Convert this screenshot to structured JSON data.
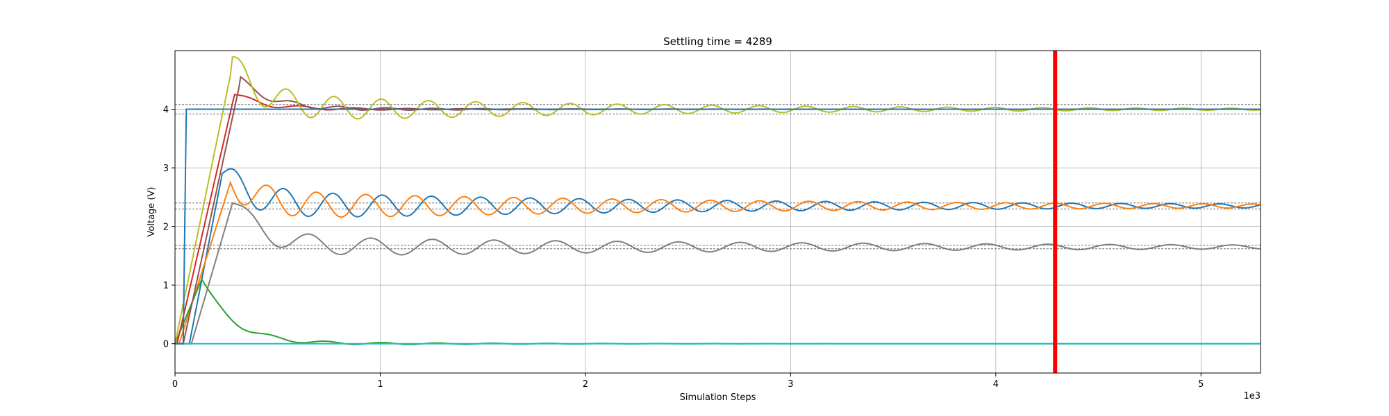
{
  "chart_data": {
    "type": "line",
    "title": "Settling time = 4289",
    "xlabel": "Simulation Steps",
    "ylabel": "Voltage (V)",
    "x_multiplier_label": "1e3",
    "xlim": [
      0,
      5290
    ],
    "ylim": [
      -0.5,
      5.0
    ],
    "grid": true,
    "x_ticks": [
      0,
      1000,
      2000,
      3000,
      4000,
      5000
    ],
    "x_tick_labels": [
      "0",
      "1",
      "2",
      "3",
      "4",
      "5"
    ],
    "y_ticks": [
      0,
      1,
      2,
      3,
      4
    ],
    "y_tick_labels": [
      "0",
      "1",
      "2",
      "3",
      "4"
    ],
    "settling_time": 4289,
    "settling_line_color": "#ff0000",
    "reference_bands": [
      {
        "low": 3.92,
        "high": 4.08
      },
      {
        "low": 2.3,
        "high": 2.4
      },
      {
        "low": 1.62,
        "high": 1.68
      }
    ],
    "series": [
      {
        "color": "#1f77b4",
        "start": 0,
        "delay": 70,
        "final": 2.35,
        "initial_value": 2.9,
        "amp": 0.25,
        "period": 240,
        "tau": 2500,
        "rise": 160,
        "phase": 0.0,
        "step_at": 40,
        "step_value": 4.0
      },
      {
        "color": "#ff7f0e",
        "start": 0,
        "delay": 20,
        "final": 2.35,
        "initial_value": 2.75,
        "amp": 0.25,
        "period": 240,
        "tau": 2500,
        "rise": 250,
        "phase": 3.14,
        "step_at": null,
        "step_value": null
      },
      {
        "color": "#2ca02c",
        "start": 0,
        "delay": 0,
        "final": 0.0,
        "initial_value": 1.1,
        "amp": 0.05,
        "period": 270,
        "tau": 800,
        "rise": 130,
        "phase": 0.0,
        "step_at": null,
        "step_value": null
      },
      {
        "color": "#d62728",
        "start": 0,
        "delay": 10,
        "final": 4.0,
        "initial_value": 4.25,
        "amp": 0.05,
        "period": 260,
        "tau": 600,
        "rise": 280,
        "phase": 0.0,
        "step_at": null,
        "step_value": null
      },
      {
        "color": "#8c564b",
        "start": 0,
        "delay": 40,
        "final": 4.0,
        "initial_value": 4.5,
        "amp": 0.06,
        "period": 230,
        "tau": 700,
        "rise": 280,
        "phase": 1.0,
        "step_at": null,
        "step_value": null
      },
      {
        "color": "#7f7f7f",
        "start": 0,
        "delay": 80,
        "final": 1.65,
        "initial_value": 2.4,
        "amp": 0.18,
        "period": 300,
        "tau": 3000,
        "rise": 200,
        "phase": 0.0,
        "step_at": null,
        "step_value": null
      },
      {
        "color": "#bcbd22",
        "start": 0,
        "delay": 0,
        "final": 4.0,
        "initial_value": 4.75,
        "amp": 0.25,
        "period": 230,
        "tau": 1800,
        "rise": 280,
        "phase": 0.6,
        "step_at": null,
        "step_value": null
      },
      {
        "color": "#17becf",
        "start": 0,
        "delay": 0,
        "final": 0.0,
        "initial_value": 0.0,
        "amp": 0.0,
        "period": 250,
        "tau": 1000,
        "rise": 1,
        "phase": 0.0,
        "step_at": null,
        "step_value": null
      }
    ]
  }
}
